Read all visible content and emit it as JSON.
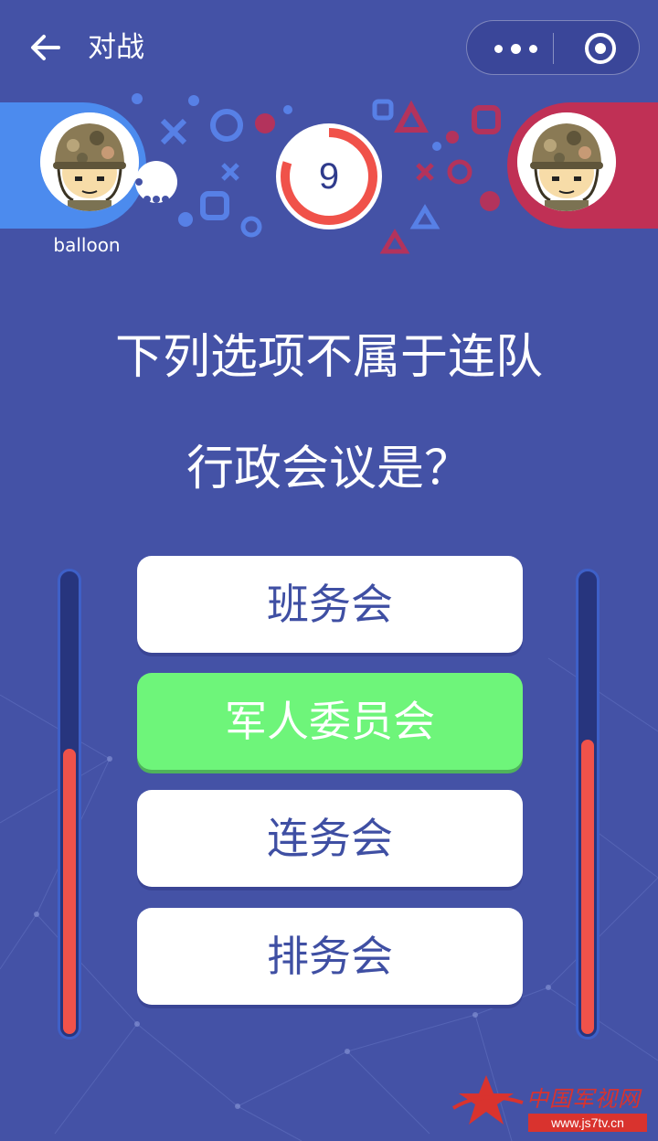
{
  "header": {
    "title": "对战",
    "back_icon": "arrow-left-icon",
    "menu_icon": "more-dots-icon",
    "close_icon": "target-circle-icon"
  },
  "players": {
    "left": {
      "name": "balloon",
      "color": "#4c8bee",
      "score_fraction": 0.62
    },
    "right": {
      "name": "",
      "color": "#c03055",
      "score_fraction": 0.64
    }
  },
  "timer": {
    "value": "9",
    "progress_fraction": 0.8
  },
  "question": {
    "line1": "下列选项不属于连队",
    "line2": "行政会议是？"
  },
  "options": [
    {
      "label": "班务会",
      "state": "normal"
    },
    {
      "label": "军人委员会",
      "state": "correct"
    },
    {
      "label": "连务会",
      "state": "normal"
    },
    {
      "label": "排务会",
      "state": "normal"
    }
  ],
  "colors": {
    "background": "#4452a6",
    "correct": "#6ef57a",
    "meter_fill": "#f0524a",
    "timer_ring": "#f0524a"
  },
  "watermark": {
    "logo_text": "中国军视网",
    "url": "www.js7tv.cn"
  }
}
